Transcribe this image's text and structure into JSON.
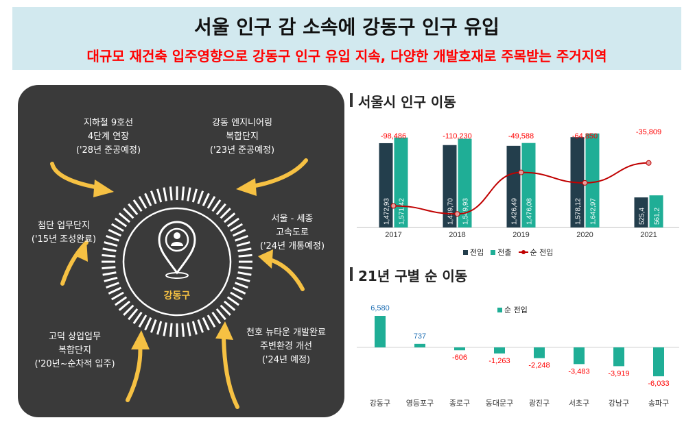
{
  "header": {
    "title": "서울 인구 감 소속에 강동구 인구 유입",
    "subtitle": "대규모 재건축 입주영향으로 강동구 인구 유입 지속, 다양한 개발호재로 주목받는 주거지역"
  },
  "infographic": {
    "center_label": "강동구",
    "features": [
      {
        "lines": [
          "지하철 9호선",
          "4단계 연장",
          "('28년 준공예정)"
        ]
      },
      {
        "lines": [
          "강동 엔지니어링",
          "복합단지",
          "('23년 준공예정)"
        ]
      },
      {
        "lines": [
          "첨단 업무단지",
          "('15년 조성완료)"
        ]
      },
      {
        "lines": [
          "서울 - 세종",
          "고속도로",
          "('24년 개통예정)"
        ]
      },
      {
        "lines": [
          "고덕 상업업무",
          "복합단지",
          "('20년~순차적 입주)"
        ]
      },
      {
        "lines": [
          "천호 뉴타운 개발완료",
          "주변환경 개선",
          "('24년 예정)"
        ]
      }
    ]
  },
  "section1_title": "서울시 인구 이동",
  "section2_title": "21년 구별 순 이동",
  "chart_data": [
    {
      "type": "bar",
      "categories": [
        "2017",
        "2018",
        "2019",
        "2020",
        "2021"
      ],
      "series": [
        {
          "name": "전입",
          "values": [
            1472.93,
            1439.7,
            1426.49,
            1578.12,
            525.4
          ],
          "labels": [
            "1,472,93",
            "1,439,70",
            "1,426,49",
            "1,578,12",
            "525,4"
          ]
        },
        {
          "name": "전출",
          "values": [
            1571.42,
            1549.93,
            1476.08,
            1642.97,
            561.2
          ],
          "labels": [
            "1,571,42",
            "1,549,93",
            "1,476,08",
            "1,642,97",
            "561,2"
          ]
        },
        {
          "name": "순 전입",
          "type": "line",
          "values": [
            -98486,
            -110230,
            -49588,
            -64850,
            -35809
          ],
          "labels": [
            "-98,486",
            "-110,230",
            "-49,588",
            "-64,850",
            "-35,809"
          ]
        }
      ],
      "colors": {
        "in": "#233e4c",
        "out": "#1fae96",
        "net": "#c00000"
      }
    },
    {
      "type": "bar",
      "categories": [
        "강동구",
        "영등포구",
        "종로구",
        "동대문구",
        "광진구",
        "서초구",
        "강남구",
        "송파구"
      ],
      "series": [
        {
          "name": "순 전입",
          "values": [
            6580,
            737,
            -606,
            -1263,
            -2248,
            -3483,
            -3919,
            -6033
          ],
          "labels": [
            "6,580",
            "737",
            "-606",
            "-1,263",
            "-2,248",
            "-3,483",
            "-3,919",
            "-6,033"
          ]
        }
      ],
      "colors": {
        "bar": "#1fae96",
        "positive_label": "#1f6fb4",
        "negative_label": "#ff0000"
      }
    }
  ]
}
